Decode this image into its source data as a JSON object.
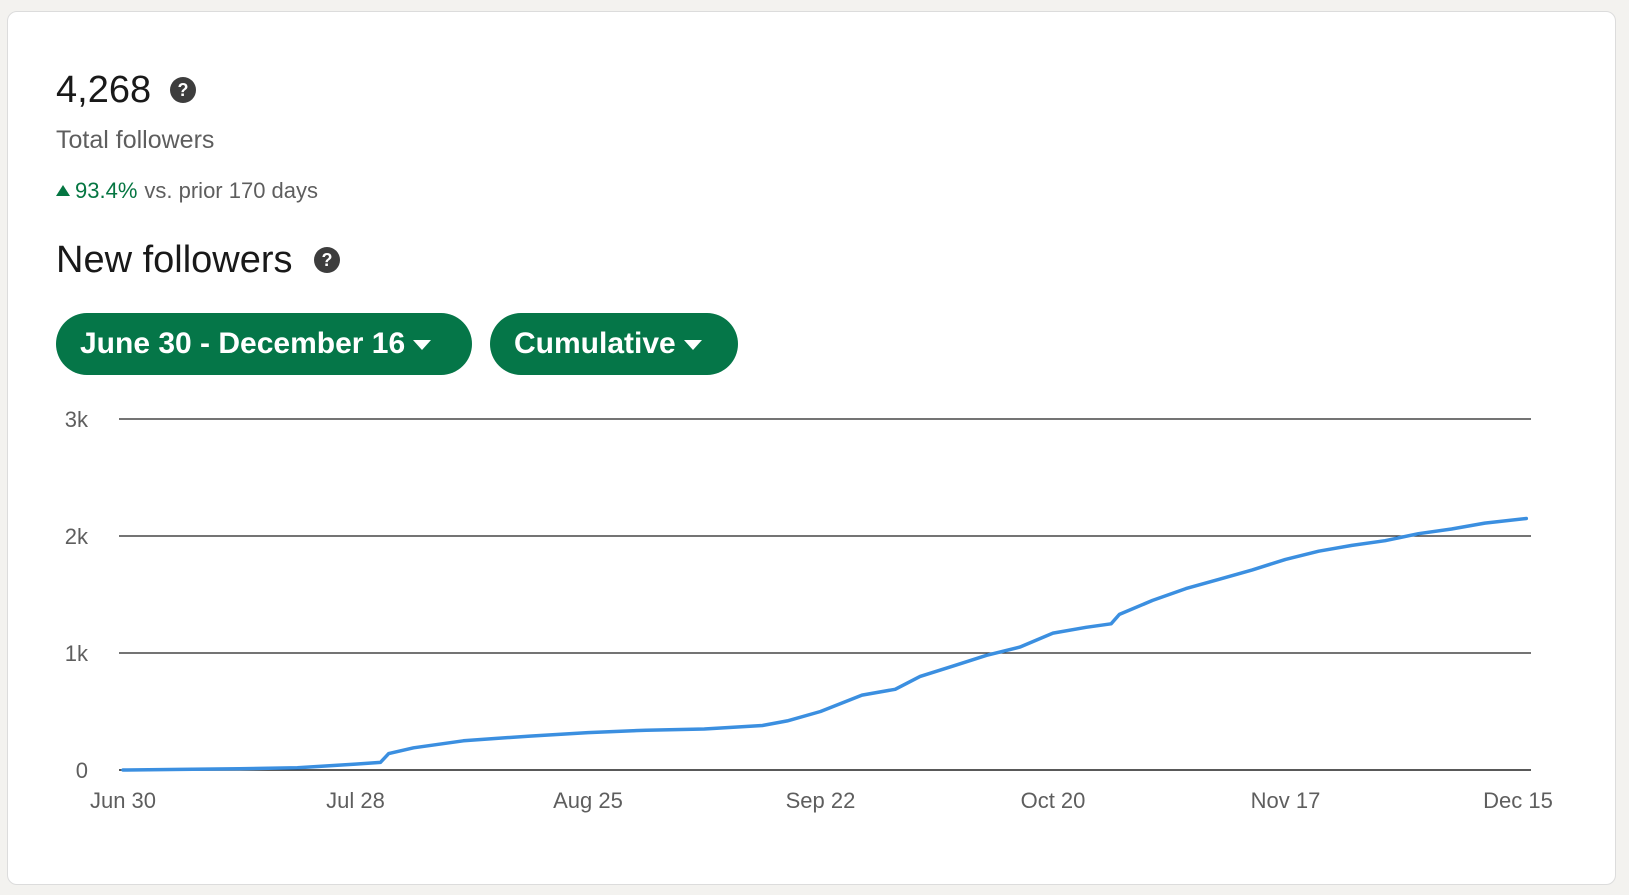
{
  "summary": {
    "total_value": "4,268",
    "total_label": "Total followers",
    "change_value": "93.4%",
    "change_text": "vs. prior 170 days"
  },
  "section": {
    "title": "New followers"
  },
  "filters": {
    "date_range": "June 30 - December 16",
    "mode": "Cumulative"
  },
  "colors": {
    "accent": "#057648",
    "positive": "#057642",
    "line": "#3b8fe0"
  },
  "chart_data": {
    "type": "line",
    "title": "",
    "xlabel": "",
    "ylabel": "",
    "ylim": [
      0,
      3000
    ],
    "yticks": [
      0,
      1000,
      2000,
      3000
    ],
    "ytick_labels": [
      "0",
      "1k",
      "2k",
      "3k"
    ],
    "xticks": [
      "Jun 30",
      "Jul 28",
      "Aug 25",
      "Sep 22",
      "Oct 20",
      "Nov 17",
      "Dec 15"
    ],
    "grid": true,
    "legend": "none",
    "series": [
      {
        "x": [
          "Jun 30",
          "Jul 7",
          "Jul 14",
          "Jul 21",
          "Jul 28",
          "Jul 31",
          "Aug 1",
          "Aug 4",
          "Aug 7",
          "Aug 10",
          "Aug 14",
          "Aug 18",
          "Aug 25",
          "Sep 1",
          "Sep 8",
          "Sep 15",
          "Sep 18",
          "Sep 22",
          "Sep 27",
          "Oct 1",
          "Oct 4",
          "Oct 8",
          "Oct 12",
          "Oct 16",
          "Oct 20",
          "Oct 24",
          "Oct 27",
          "Oct 28",
          "Nov 1",
          "Nov 5",
          "Nov 9",
          "Nov 13",
          "Nov 17",
          "Nov 21",
          "Nov 25",
          "Nov 29",
          "Dec 3",
          "Dec 7",
          "Dec 11",
          "Dec 16"
        ],
        "values": [
          0,
          5,
          10,
          20,
          50,
          65,
          140,
          190,
          220,
          250,
          270,
          290,
          320,
          340,
          350,
          380,
          420,
          500,
          640,
          690,
          800,
          890,
          980,
          1050,
          1170,
          1220,
          1250,
          1330,
          1450,
          1550,
          1630,
          1710,
          1800,
          1870,
          1920,
          1960,
          2020,
          2060,
          2110,
          2150
        ]
      }
    ]
  }
}
